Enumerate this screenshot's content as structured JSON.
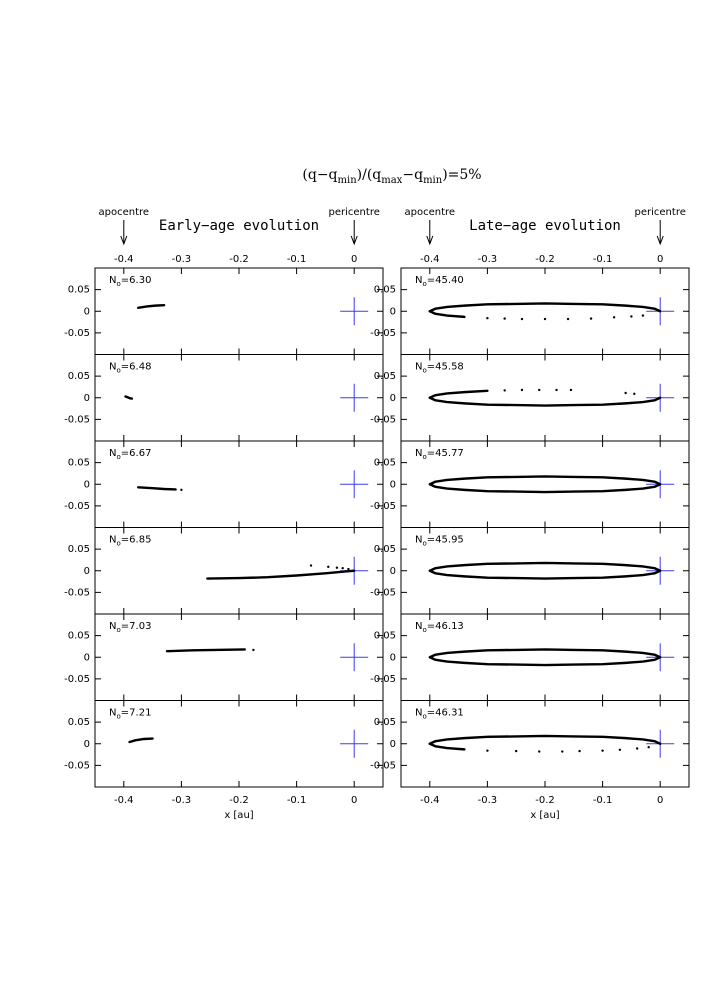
{
  "figure": {
    "title": [
      "(q−q",
      "min",
      ")/(q",
      "max",
      "−q",
      "min",
      ")=5%"
    ],
    "columns": [
      {
        "subtitle": "Early−age evolution",
        "annotations": [
          {
            "text": "apocentre",
            "x": -0.4
          },
          {
            "text": "pericentre",
            "x": 0
          }
        ],
        "xlabel": "x [au]"
      },
      {
        "subtitle": "Late−age evolution",
        "annotations": [
          {
            "text": "apocentre",
            "x": -0.4
          },
          {
            "text": "pericentre",
            "x": 0
          }
        ],
        "xlabel": "x [au]"
      }
    ]
  },
  "chart_data": [
    {
      "type": "scatter",
      "label": [
        "N",
        "o",
        "=6.30"
      ],
      "xlim": [
        -0.45,
        0.05
      ],
      "ylim": [
        -0.1,
        0.1
      ],
      "xticks": [
        -0.4,
        -0.3,
        -0.2,
        -0.1,
        0
      ],
      "yticks": [
        -0.05,
        0,
        0.05
      ],
      "star": {
        "x": 0,
        "y": 0,
        "color": "#3c3cf0"
      },
      "series": [
        {
          "style": "line",
          "color": "#000000",
          "x": [
            -0.375,
            -0.36,
            -0.345,
            -0.33
          ],
          "y": [
            0.008,
            0.011,
            0.013,
            0.014
          ]
        }
      ]
    },
    {
      "type": "scatter",
      "label": [
        "N",
        "o",
        "=6.48"
      ],
      "xlim": [
        -0.45,
        0.05
      ],
      "ylim": [
        -0.1,
        0.1
      ],
      "xticks": [
        -0.4,
        -0.3,
        -0.2,
        -0.1,
        0
      ],
      "yticks": [
        -0.05,
        0,
        0.05
      ],
      "star": {
        "x": 0,
        "y": 0,
        "color": "#3c3cf0"
      },
      "series": [
        {
          "style": "line",
          "color": "#000000",
          "x": [
            -0.397,
            -0.393,
            -0.39,
            -0.386
          ],
          "y": [
            0.003,
            0.001,
            -0.001,
            -0.002
          ]
        }
      ]
    },
    {
      "type": "scatter",
      "label": [
        "N",
        "o",
        "=6.67"
      ],
      "xlim": [
        -0.45,
        0.05
      ],
      "ylim": [
        -0.1,
        0.1
      ],
      "xticks": [
        -0.4,
        -0.3,
        -0.2,
        -0.1,
        0
      ],
      "yticks": [
        -0.05,
        0,
        0.05
      ],
      "star": {
        "x": 0,
        "y": 0,
        "color": "#3c3cf0"
      },
      "series": [
        {
          "style": "line",
          "color": "#000000",
          "x": [
            -0.375,
            -0.35,
            -0.33,
            -0.31
          ],
          "y": [
            -0.007,
            -0.009,
            -0.011,
            -0.012
          ]
        },
        {
          "style": "points",
          "color": "#000000",
          "x": [
            -0.3
          ],
          "y": [
            -0.013
          ]
        }
      ]
    },
    {
      "type": "scatter",
      "label": [
        "N",
        "o",
        "=6.85"
      ],
      "xlim": [
        -0.45,
        0.05
      ],
      "ylim": [
        -0.1,
        0.1
      ],
      "xticks": [
        -0.4,
        -0.3,
        -0.2,
        -0.1,
        0
      ],
      "yticks": [
        -0.05,
        0,
        0.05
      ],
      "star": {
        "x": 0,
        "y": 0,
        "color": "#3c3cf0"
      },
      "series": [
        {
          "style": "line",
          "color": "#000000",
          "x": [
            -0.255,
            -0.2,
            -0.15,
            -0.1,
            -0.05,
            -0.01,
            0
          ],
          "y": [
            -0.018,
            -0.017,
            -0.015,
            -0.011,
            -0.006,
            -0.001,
            0
          ]
        },
        {
          "style": "points",
          "color": "#000000",
          "x": [
            -0.075,
            -0.045,
            -0.03,
            -0.02,
            -0.01
          ],
          "y": [
            0.012,
            0.009,
            0.007,
            0.006,
            0.004
          ]
        }
      ]
    },
    {
      "type": "scatter",
      "label": [
        "N",
        "o",
        "=7.03"
      ],
      "xlim": [
        -0.45,
        0.05
      ],
      "ylim": [
        -0.1,
        0.1
      ],
      "xticks": [
        -0.4,
        -0.3,
        -0.2,
        -0.1,
        0
      ],
      "yticks": [
        -0.05,
        0,
        0.05
      ],
      "star": {
        "x": 0,
        "y": 0,
        "color": "#3c3cf0"
      },
      "series": [
        {
          "style": "line",
          "color": "#000000",
          "x": [
            -0.325,
            -0.28,
            -0.24,
            -0.19
          ],
          "y": [
            0.014,
            0.016,
            0.017,
            0.018
          ]
        },
        {
          "style": "points",
          "color": "#000000",
          "x": [
            -0.175
          ],
          "y": [
            0.017
          ]
        }
      ]
    },
    {
      "type": "scatter",
      "label": [
        "N",
        "o",
        "=7.21"
      ],
      "xlim": [
        -0.45,
        0.05
      ],
      "ylim": [
        -0.1,
        0.1
      ],
      "xticks": [
        -0.4,
        -0.3,
        -0.2,
        -0.1,
        0
      ],
      "yticks": [
        -0.05,
        0,
        0.05
      ],
      "star": {
        "x": 0,
        "y": 0,
        "color": "#3c3cf0"
      },
      "series": [
        {
          "style": "line",
          "color": "#000000",
          "x": [
            -0.39,
            -0.38,
            -0.365,
            -0.35
          ],
          "y": [
            0.004,
            0.008,
            0.011,
            0.012
          ]
        }
      ]
    },
    {
      "type": "scatter",
      "label": [
        "N",
        "o",
        "=45.40"
      ],
      "xlim": [
        -0.45,
        0.05
      ],
      "ylim": [
        -0.1,
        0.1
      ],
      "xticks": [
        -0.4,
        -0.3,
        -0.2,
        -0.1,
        0
      ],
      "yticks": [
        -0.05,
        0,
        0.05
      ],
      "star": {
        "x": 0,
        "y": 0,
        "color": "#3c3cf0"
      },
      "series": [
        {
          "style": "line",
          "color": "#000000",
          "x": [
            -0.4,
            -0.39,
            -0.37,
            -0.34,
            -0.3,
            -0.25,
            -0.2,
            -0.15,
            -0.1,
            -0.06,
            -0.03,
            -0.01,
            0
          ],
          "y": [
            0,
            0.006,
            0.01,
            0.013,
            0.016,
            0.017,
            0.018,
            0.017,
            0.016,
            0.013,
            0.01,
            0.006,
            0
          ]
        },
        {
          "style": "line",
          "color": "#000000",
          "x": [
            -0.4,
            -0.39,
            -0.37,
            -0.34
          ],
          "y": [
            0,
            -0.006,
            -0.01,
            -0.013
          ]
        },
        {
          "style": "points",
          "color": "#000000",
          "x": [
            -0.3,
            -0.27,
            -0.24,
            -0.2,
            -0.16,
            -0.12,
            -0.08,
            -0.05,
            -0.03
          ],
          "y": [
            -0.016,
            -0.017,
            -0.018,
            -0.018,
            -0.018,
            -0.017,
            -0.014,
            -0.012,
            -0.01
          ]
        }
      ]
    },
    {
      "type": "scatter",
      "label": [
        "N",
        "o",
        "=45.58"
      ],
      "xlim": [
        -0.45,
        0.05
      ],
      "ylim": [
        -0.1,
        0.1
      ],
      "xticks": [
        -0.4,
        -0.3,
        -0.2,
        -0.1,
        0
      ],
      "yticks": [
        -0.05,
        0,
        0.05
      ],
      "star": {
        "x": 0,
        "y": 0,
        "color": "#3c3cf0"
      },
      "series": [
        {
          "style": "line",
          "color": "#000000",
          "x": [
            -0.4,
            -0.39,
            -0.37,
            -0.34,
            -0.3,
            -0.25,
            -0.2,
            -0.15,
            -0.1,
            -0.06,
            -0.03,
            -0.01,
            0
          ],
          "y": [
            0,
            -0.006,
            -0.01,
            -0.013,
            -0.016,
            -0.017,
            -0.018,
            -0.017,
            -0.016,
            -0.013,
            -0.01,
            -0.006,
            0
          ]
        },
        {
          "style": "line",
          "color": "#000000",
          "x": [
            -0.4,
            -0.39,
            -0.37,
            -0.34,
            -0.3
          ],
          "y": [
            0,
            0.006,
            0.01,
            0.013,
            0.016
          ]
        },
        {
          "style": "points",
          "color": "#000000",
          "x": [
            -0.27,
            -0.24,
            -0.21,
            -0.18,
            -0.155,
            -0.06,
            -0.045
          ],
          "y": [
            0.017,
            0.018,
            0.018,
            0.018,
            0.018,
            0.011,
            0.009
          ]
        }
      ]
    },
    {
      "type": "scatter",
      "label": [
        "N",
        "o",
        "=45.77"
      ],
      "xlim": [
        -0.45,
        0.05
      ],
      "ylim": [
        -0.1,
        0.1
      ],
      "xticks": [
        -0.4,
        -0.3,
        -0.2,
        -0.1,
        0
      ],
      "yticks": [
        -0.05,
        0,
        0.05
      ],
      "star": {
        "x": 0,
        "y": 0,
        "color": "#3c3cf0"
      },
      "series": [
        {
          "style": "line",
          "color": "#000000",
          "x": [
            -0.4,
            -0.39,
            -0.37,
            -0.34,
            -0.3,
            -0.25,
            -0.2,
            -0.15,
            -0.1,
            -0.06,
            -0.03,
            -0.01,
            0,
            -0.01,
            -0.03,
            -0.06,
            -0.1,
            -0.15,
            -0.2,
            -0.25,
            -0.3,
            -0.34,
            -0.37,
            -0.39,
            -0.4
          ],
          "y": [
            0,
            0.006,
            0.01,
            0.013,
            0.016,
            0.017,
            0.018,
            0.017,
            0.016,
            0.013,
            0.01,
            0.006,
            0,
            -0.006,
            -0.01,
            -0.013,
            -0.016,
            -0.017,
            -0.018,
            -0.017,
            -0.016,
            -0.013,
            -0.01,
            -0.006,
            0
          ]
        }
      ]
    },
    {
      "type": "scatter",
      "label": [
        "N",
        "o",
        "=45.95"
      ],
      "xlim": [
        -0.45,
        0.05
      ],
      "ylim": [
        -0.1,
        0.1
      ],
      "xticks": [
        -0.4,
        -0.3,
        -0.2,
        -0.1,
        0
      ],
      "yticks": [
        -0.05,
        0,
        0.05
      ],
      "star": {
        "x": 0,
        "y": 0,
        "color": "#3c3cf0"
      },
      "series": [
        {
          "style": "line",
          "color": "#000000",
          "x": [
            -0.4,
            -0.39,
            -0.37,
            -0.34,
            -0.3,
            -0.25,
            -0.2,
            -0.15,
            -0.1,
            -0.06,
            -0.03,
            -0.01,
            0,
            -0.01,
            -0.03,
            -0.06,
            -0.1,
            -0.15,
            -0.2,
            -0.25,
            -0.3,
            -0.34,
            -0.37,
            -0.39,
            -0.4
          ],
          "y": [
            0,
            0.006,
            0.01,
            0.013,
            0.016,
            0.017,
            0.018,
            0.017,
            0.016,
            0.013,
            0.01,
            0.006,
            0,
            -0.006,
            -0.01,
            -0.013,
            -0.016,
            -0.017,
            -0.018,
            -0.017,
            -0.016,
            -0.013,
            -0.01,
            -0.006,
            0
          ]
        }
      ]
    },
    {
      "type": "scatter",
      "label": [
        "N",
        "o",
        "=46.13"
      ],
      "xlim": [
        -0.45,
        0.05
      ],
      "ylim": [
        -0.1,
        0.1
      ],
      "xticks": [
        -0.4,
        -0.3,
        -0.2,
        -0.1,
        0
      ],
      "yticks": [
        -0.05,
        0,
        0.05
      ],
      "star": {
        "x": 0,
        "y": 0,
        "color": "#3c3cf0"
      },
      "series": [
        {
          "style": "line",
          "color": "#000000",
          "x": [
            -0.4,
            -0.39,
            -0.37,
            -0.34,
            -0.3,
            -0.25,
            -0.2,
            -0.15,
            -0.1,
            -0.06,
            -0.03,
            -0.01,
            0,
            -0.01,
            -0.03,
            -0.06,
            -0.1,
            -0.15,
            -0.2,
            -0.25,
            -0.3,
            -0.34,
            -0.37,
            -0.39,
            -0.4
          ],
          "y": [
            0,
            0.006,
            0.01,
            0.013,
            0.016,
            0.017,
            0.018,
            0.017,
            0.016,
            0.013,
            0.01,
            0.006,
            0,
            -0.006,
            -0.01,
            -0.013,
            -0.016,
            -0.017,
            -0.018,
            -0.017,
            -0.016,
            -0.013,
            -0.01,
            -0.006,
            0
          ]
        }
      ]
    },
    {
      "type": "scatter",
      "label": [
        "N",
        "o",
        "=46.31"
      ],
      "xlim": [
        -0.45,
        0.05
      ],
      "ylim": [
        -0.1,
        0.1
      ],
      "xticks": [
        -0.4,
        -0.3,
        -0.2,
        -0.1,
        0
      ],
      "yticks": [
        -0.05,
        0,
        0.05
      ],
      "star": {
        "x": 0,
        "y": 0,
        "color": "#3c3cf0"
      },
      "series": [
        {
          "style": "line",
          "color": "#000000",
          "x": [
            -0.4,
            -0.39,
            -0.37,
            -0.34,
            -0.3,
            -0.25,
            -0.2,
            -0.15,
            -0.1,
            -0.06,
            -0.03,
            -0.01,
            0
          ],
          "y": [
            0,
            0.006,
            0.01,
            0.013,
            0.016,
            0.017,
            0.018,
            0.017,
            0.016,
            0.013,
            0.01,
            0.006,
            0
          ]
        },
        {
          "style": "line",
          "color": "#000000",
          "x": [
            -0.4,
            -0.39,
            -0.37,
            -0.34
          ],
          "y": [
            0,
            -0.006,
            -0.01,
            -0.013
          ]
        },
        {
          "style": "points",
          "color": "#000000",
          "x": [
            -0.3,
            -0.25,
            -0.21,
            -0.17,
            -0.14,
            -0.1,
            -0.07,
            -0.04,
            -0.02
          ],
          "y": [
            -0.016,
            -0.017,
            -0.018,
            -0.018,
            -0.017,
            -0.016,
            -0.014,
            -0.011,
            -0.008
          ]
        }
      ]
    }
  ]
}
